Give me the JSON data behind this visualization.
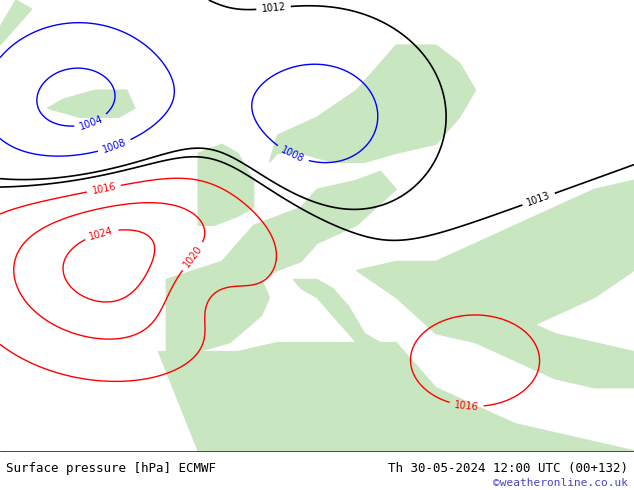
{
  "title_left": "Surface pressure [hPa] ECMWF",
  "title_right": "Th 30-05-2024 12:00 UTC (00+132)",
  "watermark": "©weatheronline.co.uk",
  "bg_color": "#d0e8f0",
  "land_color": "#c8e6c0",
  "fig_width": 6.34,
  "fig_height": 4.9,
  "dpi": 100,
  "bottom_bar_color": "#ffffff",
  "bottom_bar_height": 0.08,
  "title_fontsize": 9,
  "watermark_color": "#4444cc",
  "watermark_fontsize": 8
}
